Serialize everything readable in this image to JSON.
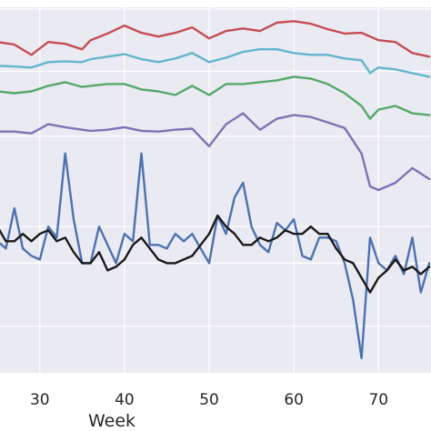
{
  "chart_data": {
    "type": "line",
    "title": "",
    "xlabel": "Week",
    "ylabel": "",
    "grid": true,
    "xlim": [
      25.3,
      76.2
    ],
    "ylim": [
      0,
      1
    ],
    "x_ticks": [
      30,
      40,
      50,
      60,
      70
    ],
    "x_tick_labels": [
      "30",
      "40",
      "50",
      "60",
      "70"
    ],
    "y_gridlines": [
      0.128,
      0.3,
      0.4,
      0.647,
      0.825,
      0.995
    ],
    "style": {
      "background": "#eaeaf2",
      "gridline": "#ffffff",
      "axis_text": "#262626"
    },
    "series": [
      {
        "color": "#c44e52",
        "x": [
          25,
          27,
          29,
          31,
          33,
          35,
          36,
          38,
          40,
          42,
          44,
          46,
          48,
          50,
          52,
          54,
          56,
          58,
          60,
          62,
          64,
          66,
          68,
          70,
          72,
          74,
          76
        ],
        "y": [
          0.905,
          0.898,
          0.87,
          0.905,
          0.9,
          0.885,
          0.91,
          0.928,
          0.95,
          0.93,
          0.92,
          0.93,
          0.945,
          0.915,
          0.935,
          0.942,
          0.935,
          0.958,
          0.962,
          0.955,
          0.94,
          0.928,
          0.93,
          0.91,
          0.905,
          0.875,
          0.865
        ]
      },
      {
        "color": "#64b5cd",
        "x": [
          25,
          27,
          29,
          31,
          33,
          35,
          36,
          38,
          40,
          42,
          44,
          46,
          48,
          50,
          52,
          54,
          56,
          58,
          60,
          62,
          64,
          66,
          68,
          69,
          70,
          72,
          74,
          76
        ],
        "y": [
          0.84,
          0.838,
          0.835,
          0.85,
          0.852,
          0.85,
          0.858,
          0.865,
          0.872,
          0.858,
          0.85,
          0.86,
          0.875,
          0.85,
          0.862,
          0.878,
          0.885,
          0.885,
          0.875,
          0.87,
          0.87,
          0.86,
          0.855,
          0.82,
          0.835,
          0.83,
          0.82,
          0.81
        ]
      },
      {
        "color": "#55a868",
        "x": [
          25,
          27,
          29,
          31,
          33,
          35,
          36,
          38,
          40,
          42,
          44,
          46,
          48,
          50,
          52,
          54,
          56,
          58,
          60,
          62,
          64,
          66,
          68,
          69,
          70,
          72,
          74,
          76
        ],
        "y": [
          0.77,
          0.765,
          0.77,
          0.785,
          0.795,
          0.782,
          0.785,
          0.79,
          0.79,
          0.775,
          0.77,
          0.76,
          0.785,
          0.76,
          0.79,
          0.79,
          0.795,
          0.8,
          0.81,
          0.805,
          0.79,
          0.765,
          0.73,
          0.695,
          0.72,
          0.73,
          0.71,
          0.705
        ]
      },
      {
        "color": "#8172b2",
        "x": [
          25,
          27,
          29,
          31,
          33,
          35,
          36,
          38,
          40,
          42,
          44,
          46,
          48,
          50,
          52,
          54,
          56,
          58,
          60,
          62,
          64,
          66,
          68,
          69,
          70,
          72,
          74,
          76
        ],
        "y": [
          0.66,
          0.66,
          0.655,
          0.68,
          0.672,
          0.665,
          0.662,
          0.665,
          0.672,
          0.662,
          0.66,
          0.665,
          0.668,
          0.62,
          0.68,
          0.71,
          0.665,
          0.695,
          0.705,
          0.7,
          0.685,
          0.67,
          0.6,
          0.51,
          0.5,
          0.52,
          0.56,
          0.53
        ]
      },
      {
        "color": "#4c72b0",
        "x": [
          25,
          26,
          27,
          28,
          29,
          30,
          31,
          32,
          33,
          34,
          35,
          36,
          37,
          38,
          39,
          40,
          41,
          42,
          43,
          44,
          45,
          46,
          47,
          48,
          49,
          50,
          51,
          52,
          53,
          54,
          55,
          56,
          57,
          58,
          59,
          60,
          61,
          62,
          63,
          64,
          65,
          66,
          67,
          68,
          69,
          70,
          71,
          72,
          73,
          74,
          75,
          76
        ],
        "y": [
          0.36,
          0.34,
          0.45,
          0.34,
          0.32,
          0.31,
          0.4,
          0.37,
          0.6,
          0.42,
          0.3,
          0.3,
          0.4,
          0.35,
          0.3,
          0.38,
          0.36,
          0.6,
          0.35,
          0.35,
          0.34,
          0.38,
          0.36,
          0.38,
          0.34,
          0.3,
          0.43,
          0.38,
          0.48,
          0.52,
          0.4,
          0.35,
          0.33,
          0.41,
          0.39,
          0.42,
          0.32,
          0.31,
          0.37,
          0.37,
          0.36,
          0.3,
          0.2,
          0.04,
          0.37,
          0.3,
          0.28,
          0.32,
          0.27,
          0.37,
          0.22,
          0.3
        ]
      },
      {
        "color": "#1a1a1a",
        "x": [
          25,
          26,
          27,
          28,
          29,
          30,
          31,
          32,
          33,
          34,
          35,
          36,
          37,
          38,
          39,
          40,
          41,
          42,
          43,
          44,
          45,
          46,
          47,
          48,
          49,
          50,
          51,
          52,
          53,
          54,
          55,
          56,
          57,
          58,
          59,
          60,
          61,
          62,
          63,
          64,
          65,
          66,
          67,
          68,
          69,
          70,
          71,
          72,
          73,
          74,
          75,
          76
        ],
        "y": [
          0.4,
          0.36,
          0.36,
          0.38,
          0.36,
          0.38,
          0.39,
          0.36,
          0.37,
          0.33,
          0.3,
          0.3,
          0.33,
          0.28,
          0.29,
          0.31,
          0.35,
          0.37,
          0.34,
          0.31,
          0.3,
          0.3,
          0.31,
          0.32,
          0.35,
          0.38,
          0.43,
          0.4,
          0.38,
          0.35,
          0.35,
          0.37,
          0.36,
          0.37,
          0.39,
          0.38,
          0.38,
          0.4,
          0.38,
          0.38,
          0.34,
          0.31,
          0.3,
          0.26,
          0.22,
          0.26,
          0.28,
          0.31,
          0.28,
          0.29,
          0.27,
          0.29
        ]
      }
    ]
  }
}
